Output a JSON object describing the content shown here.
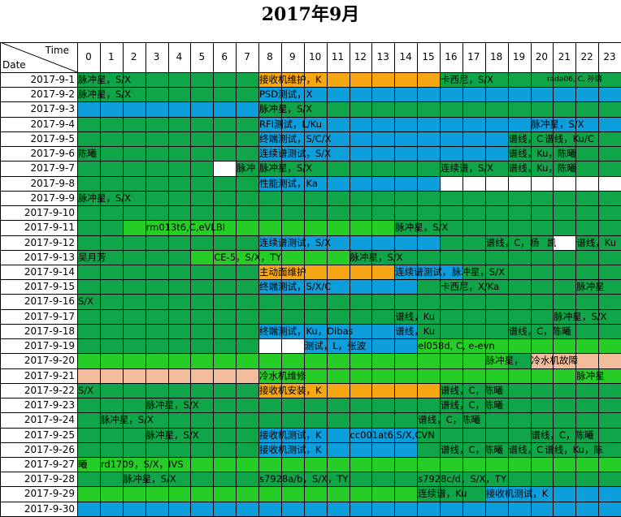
{
  "title": "2017年9月",
  "corner": {
    "time_label": "Time",
    "date_label": "Date"
  },
  "hours": [
    "0",
    "1",
    "2",
    "3",
    "4",
    "5",
    "6",
    "7",
    "8",
    "9",
    "10",
    "11",
    "12",
    "13",
    "14",
    "15",
    "16",
    "17",
    "18",
    "19",
    "20",
    "21",
    "22",
    "23"
  ],
  "dates": [
    "2017-9-1",
    "2017-9-2",
    "2017-9-3",
    "2017-9-4",
    "2017-9-5",
    "2017-9-6",
    "2017-9-7",
    "2017-9-8",
    "2017-9-9",
    "2017-9-10",
    "2017-9-11",
    "2017-9-12",
    "2017-9-13",
    "2017-9-14",
    "2017-9-15",
    "2017-9-16",
    "2017-9-17",
    "2017-9-18",
    "2017-9-19",
    "2017-9-20",
    "2017-9-21",
    "2017-9-22",
    "2017-9-23",
    "2017-9-24",
    "2017-9-25",
    "2017-9-26",
    "2017-9-27",
    "2017-9-28",
    "2017-9-29",
    "2017-9-30"
  ],
  "colors": {
    "G": "#10a548",
    "L": "#27cd27",
    "B": "#0d9edc",
    "O": "#f6a713",
    "P": "#f2bb9b",
    "W": "#ffffff"
  },
  "row_colors": [
    "GGGGGGGGOOOOOOOOGGGGGGGG",
    "GGGGGGGGBBBBBBBBBBBBBBBB",
    "BBBBBBBBGGGGGGGGGGGGGGGG",
    "GGGGGGGGBBBBBBBBBBBBBBBB",
    "GGGGGGGGBBBBBBBBBBBGGGGG",
    "GGGGGGGGBBBBBBBBBBBGGGGG",
    "GGGGGGWGGGGGGGGGGGGGGGGG",
    "GGGGGGGGBBBBBBBBWWWWWWWW",
    "GGGGGGGGGGGGGGGGGGGGGGGG",
    "GGGGGGGGGGGGGGGGGGGGGGGG",
    "GGLLLLLLLLLLLLGGGGGGGGGG",
    "GGGGGGGGBBBBBBBBGGGGGWGG",
    "GGGGGLLLLLLLGGGGGGGGGGGG",
    "GGGGGGGGOOOOOOBBBGGGGGGG",
    "GGGGGGGGBBBBBBBGGGGGGGGG",
    "GGGGGGGGGGGGGGGGGGGGGGGG",
    "GGGGGGGGGGGGGGGGGGGGGGGG",
    "GGGGGGGGBBBBBBBGGGGGGGGG",
    "GGGGGGGGWWBBBBBLLLLLLLLL",
    "LLLLLLLLLLLLLLLLLLLGPPPP",
    "PPPPPPPPLLLLLLLLLLLLLLLL",
    "GGGGGGGGOOOOOOOOGGGGGGGG",
    "GGGGGGGGGGGGGGGGGGGGGGGG",
    "GGGGGGGGGGGGGGGGGGGGGGGG",
    "GGGGGGGGBBBBBBBGGGGGGGGG",
    "GGGGGGGGBBBBBBBGGGGGGGGG",
    "LLLLLLLLLLLLLLLLLLLLLLLL",
    "GGGGGGGGGGGGGGGGGGGGGGGG",
    "LLLLLLLLLLLLLLLGGGBBBBBB",
    "BBBBBBBBBBBBBBBBBBBBBBBB"
  ],
  "events": [
    {
      "row": 0,
      "start": 0,
      "text": "脉冲星，S/X"
    },
    {
      "row": 0,
      "start": 8,
      "text": "接收机维护，K"
    },
    {
      "row": 0,
      "start": 16,
      "text": "卡西尼，S/X"
    },
    {
      "row": 0,
      "start": 20.7,
      "text": "rada06, C, 孙瑞",
      "small": true
    },
    {
      "row": 1,
      "start": 0,
      "text": "脉冲星，S/X"
    },
    {
      "row": 1,
      "start": 8,
      "text": "PSD测试，X"
    },
    {
      "row": 2,
      "start": 8,
      "text": "脉冲星，S/X"
    },
    {
      "row": 3,
      "start": 8,
      "text": "RFI测试，L/Ku"
    },
    {
      "row": 3,
      "start": 20,
      "text": "脉冲星，S/X"
    },
    {
      "row": 4,
      "start": 8,
      "text": "终端测试，S/C/X"
    },
    {
      "row": 4,
      "start": 19,
      "text": "谱线，C"
    },
    {
      "row": 4,
      "start": 20.6,
      "text": "谱线，Ku/C"
    },
    {
      "row": 5,
      "start": 0,
      "text": "陈曦"
    },
    {
      "row": 5,
      "start": 8,
      "text": "连续谱测试，S/X"
    },
    {
      "row": 5,
      "start": 19,
      "text": "谱线，Ku，陈曦"
    },
    {
      "row": 6,
      "start": 7,
      "text": "脉冲"
    },
    {
      "row": 6,
      "start": 8,
      "text": "脉冲星，S/X"
    },
    {
      "row": 6,
      "start": 16,
      "text": "连续谱，S/X"
    },
    {
      "row": 6,
      "start": 19,
      "text": "谱线，Ku，陈曦"
    },
    {
      "row": 7,
      "start": 8,
      "text": "性能测试，Ka"
    },
    {
      "row": 8,
      "start": 0,
      "text": "脉冲星，S/X"
    },
    {
      "row": 10,
      "start": 3,
      "text": "rm013t6,C,eVLBI"
    },
    {
      "row": 10,
      "start": 14,
      "text": "脉冲星，S/X"
    },
    {
      "row": 11,
      "start": 8,
      "text": "连续谱测试，S/X"
    },
    {
      "row": 11,
      "start": 18,
      "text": "谱线，C，杨"
    },
    {
      "row": 11,
      "start": 20.7,
      "text": "凯"
    },
    {
      "row": 11,
      "start": 22,
      "text": "谱线，Ku"
    },
    {
      "row": 12,
      "start": 0,
      "text": "吴月芳"
    },
    {
      "row": 12,
      "start": 6,
      "text": "CE-5，S/X，TY"
    },
    {
      "row": 12,
      "start": 12,
      "text": "脉冲星，S/X"
    },
    {
      "row": 13,
      "start": 8,
      "text": "主动面维护"
    },
    {
      "row": 13,
      "start": 14,
      "text": "连续谱测试，"
    },
    {
      "row": 13,
      "start": 16.5,
      "text": "脉冲星，S/X"
    },
    {
      "row": 14,
      "start": 8,
      "text": "终端测试，S/X/C"
    },
    {
      "row": 14,
      "start": 16,
      "text": "卡西尼，X/Ka"
    },
    {
      "row": 14,
      "start": 22,
      "text": "脉冲星"
    },
    {
      "row": 15,
      "start": 0,
      "text": "S/X"
    },
    {
      "row": 16,
      "start": 14,
      "text": "谱线，Ku"
    },
    {
      "row": 16,
      "start": 21,
      "text": "脉冲星，S/X"
    },
    {
      "row": 17,
      "start": 8,
      "text": "终端测试，Ku，Dibas"
    },
    {
      "row": 17,
      "start": 14,
      "text": "谱线，Ku"
    },
    {
      "row": 17,
      "start": 19,
      "text": "谱线，C，陈曦"
    },
    {
      "row": 18,
      "start": 10,
      "text": "测试，L，张波"
    },
    {
      "row": 18,
      "start": 15,
      "text": "el058d, C, e-evn"
    },
    {
      "row": 19,
      "start": 18,
      "text": "脉冲星，"
    },
    {
      "row": 19,
      "start": 20,
      "text": "冷水机故障"
    },
    {
      "row": 20,
      "start": 8,
      "text": "冷水机维修"
    },
    {
      "row": 20,
      "start": 22,
      "text": "脉冲星"
    },
    {
      "row": 21,
      "start": 0,
      "text": "S/X"
    },
    {
      "row": 21,
      "start": 8,
      "text": "接收机安装，K"
    },
    {
      "row": 21,
      "start": 16,
      "text": "谱线，C，陈曦"
    },
    {
      "row": 22,
      "start": 3,
      "text": "脉冲星，S/X"
    },
    {
      "row": 22,
      "start": 16,
      "text": "谱线，C，陈曦"
    },
    {
      "row": 23,
      "start": 1,
      "text": "脉冲星，S/X"
    },
    {
      "row": 23,
      "start": 15,
      "text": "谱线，C，陈曦"
    },
    {
      "row": 24,
      "start": 3,
      "text": "脉冲星，S/X"
    },
    {
      "row": 24,
      "start": 8,
      "text": "接收机测试，K"
    },
    {
      "row": 24,
      "start": 12,
      "text": "cc001at6,S/X,CVN"
    },
    {
      "row": 24,
      "start": 20,
      "text": "谱线，C，陈曦"
    },
    {
      "row": 25,
      "start": 8,
      "text": "接收机测试，K"
    },
    {
      "row": 25,
      "start": 16,
      "text": "谱线，C，陈曦"
    },
    {
      "row": 25,
      "start": 19,
      "text": "谱线，C"
    },
    {
      "row": 25,
      "start": 20.6,
      "text": "谱线，Ku，陈"
    },
    {
      "row": 26,
      "start": 0,
      "text": "曦"
    },
    {
      "row": 26,
      "start": 1,
      "text": "rd1709，S/X，IVS"
    },
    {
      "row": 27,
      "start": 2,
      "text": "脉冲星，S/X"
    },
    {
      "row": 27,
      "start": 8,
      "text": "s7928a/b，S/X，TY"
    },
    {
      "row": 27,
      "start": 15,
      "text": "s7928c/d，S/X，TY"
    },
    {
      "row": 28,
      "start": 15,
      "text": "连续谱，Ku"
    },
    {
      "row": 28,
      "start": 18,
      "text": "接收机测试，K"
    }
  ]
}
